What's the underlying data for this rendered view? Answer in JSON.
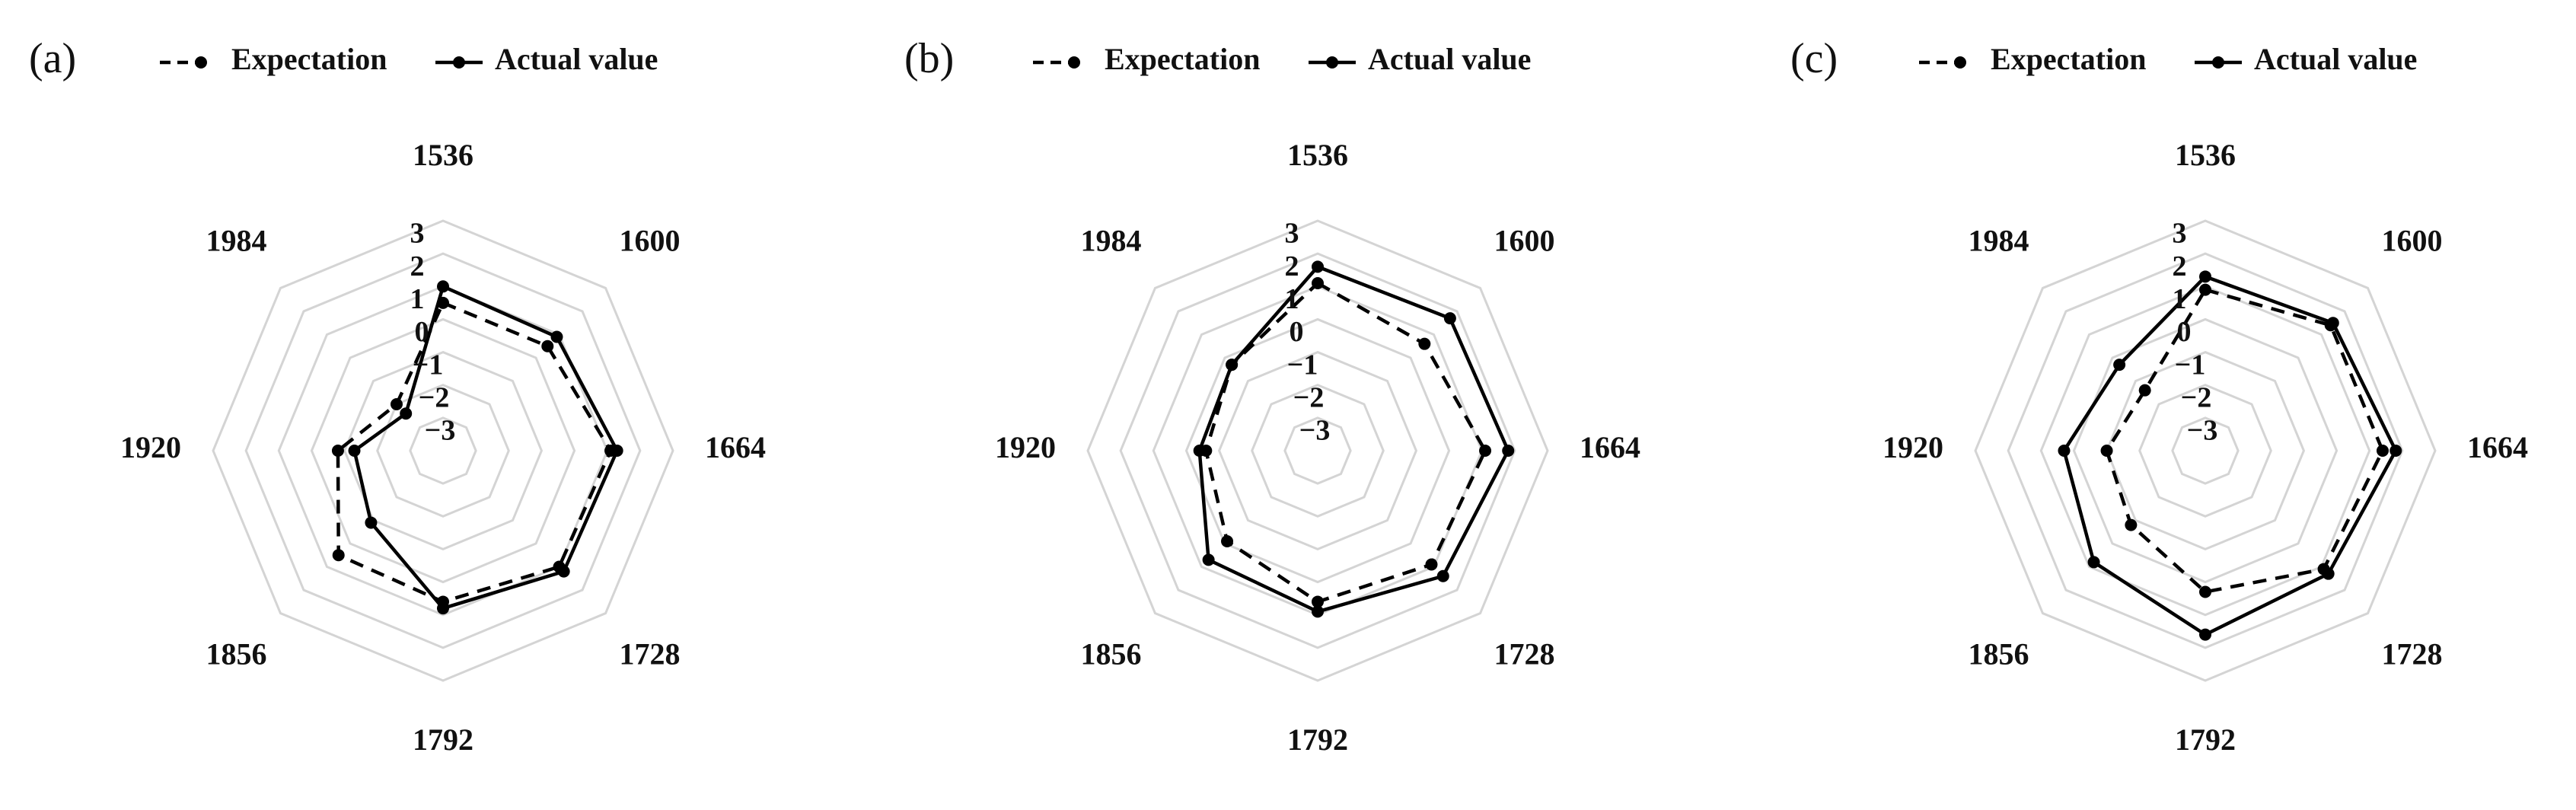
{
  "legend": {
    "expectation": "Expectation",
    "actual": "Actual value"
  },
  "chart_data": [
    {
      "type": "radar",
      "panel": "(a)",
      "categories": [
        "1536",
        "1600",
        "1664",
        "1728",
        "1792",
        "1856",
        "1920",
        "1984"
      ],
      "radial_ticks": [
        "3",
        "2",
        "1",
        "0",
        "−1",
        "−2",
        "−3"
      ],
      "rlim": [
        -4,
        3
      ],
      "grid": true,
      "series": [
        {
          "name": "Expectation",
          "style": "dashed",
          "values": [
            0.5,
            0.5,
            1.1,
            1.0,
            0.6,
            0.5,
            -0.8,
            -2.0
          ]
        },
        {
          "name": "Actual value",
          "style": "solid",
          "values": [
            1.0,
            0.9,
            1.3,
            1.2,
            0.8,
            -0.9,
            -1.3,
            -2.4
          ]
        }
      ]
    },
    {
      "type": "radar",
      "panel": "(b)",
      "categories": [
        "1536",
        "1600",
        "1664",
        "1728",
        "1792",
        "1856",
        "1920",
        "1984"
      ],
      "radial_ticks": [
        "3",
        "2",
        "1",
        "0",
        "−1",
        "−2",
        "−3"
      ],
      "rlim": [
        -4,
        3
      ],
      "grid": true,
      "series": [
        {
          "name": "Expectation",
          "style": "dashed",
          "values": [
            1.1,
            0.6,
            1.1,
            0.9,
            0.6,
            -0.1,
            -0.6,
            -0.3
          ]
        },
        {
          "name": "Actual value",
          "style": "solid",
          "values": [
            1.6,
            1.7,
            1.8,
            1.4,
            0.9,
            0.7,
            -0.4,
            -0.3
          ]
        }
      ]
    },
    {
      "type": "radar",
      "panel": "(c)",
      "categories": [
        "1536",
        "1600",
        "1664",
        "1728",
        "1792",
        "1856",
        "1920",
        "1984"
      ],
      "radial_ticks": [
        "3",
        "2",
        "1",
        "0",
        "−1",
        "−2",
        "−3"
      ],
      "rlim": [
        -4,
        3
      ],
      "grid": true,
      "series": [
        {
          "name": "Expectation",
          "style": "dashed",
          "values": [
            0.9,
            1.4,
            1.4,
            1.1,
            0.3,
            -0.8,
            -1.0,
            -1.4
          ]
        },
        {
          "name": "Actual value",
          "style": "solid",
          "values": [
            1.3,
            1.5,
            1.8,
            1.3,
            1.6,
            0.8,
            0.3,
            -0.3
          ]
        }
      ]
    }
  ]
}
